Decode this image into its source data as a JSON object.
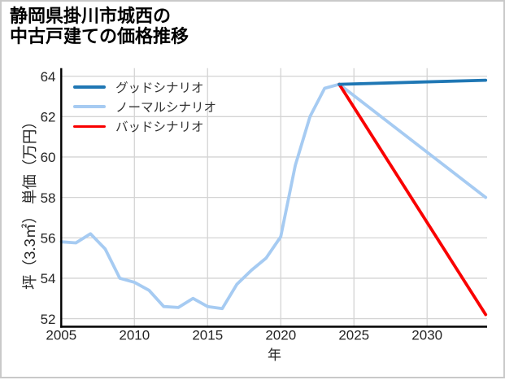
{
  "title": {
    "line1": "静岡県掛川市城西の",
    "line2": "中古戸建ての価格推移"
  },
  "chart_data": {
    "type": "line",
    "title": "静岡県掛川市城西の中古戸建ての価格推移",
    "xlabel": "年",
    "ylabel": "坪（3.3㎡） 単価（万円）",
    "xlim": [
      2005,
      2034.1
    ],
    "ylim": [
      51.6,
      64.4
    ],
    "xticks": [
      2005,
      2010,
      2015,
      2020,
      2025,
      2030
    ],
    "yticks": [
      52,
      54,
      56,
      58,
      60,
      62,
      64
    ],
    "grid": true,
    "grid_color": "#d4d4d4",
    "axis_color": "#000000",
    "tick_color": "#262626",
    "legend_position": "upper-left",
    "series": [
      {
        "label": null,
        "role": "historical",
        "color": "#a6cbf2",
        "x": [
          2005,
          2006,
          2007,
          2008,
          2009,
          2010,
          2011,
          2012,
          2013,
          2014,
          2015,
          2016,
          2017,
          2018,
          2019,
          2020,
          2021,
          2022,
          2023,
          2024
        ],
        "values": [
          55.8,
          55.75,
          56.2,
          55.45,
          54.0,
          53.8,
          53.4,
          52.6,
          52.55,
          53.0,
          52.6,
          52.5,
          53.7,
          54.4,
          55.0,
          56.05,
          59.6,
          62.0,
          63.4,
          63.6
        ]
      },
      {
        "label": "ノーマルシナリオ",
        "role": "normal-scenario",
        "color": "#a6cbf2",
        "x": [
          2024,
          2034
        ],
        "values": [
          63.6,
          58.0
        ]
      },
      {
        "label": "バッドシナリオ",
        "role": "bad-scenario",
        "color": "#f90000",
        "x": [
          2024,
          2034
        ],
        "values": [
          63.6,
          52.2
        ]
      },
      {
        "label": "グッドシナリオ",
        "role": "good-scenario",
        "color": "#1f77b4",
        "x": [
          2024,
          2034
        ],
        "values": [
          63.6,
          63.8
        ]
      }
    ],
    "legend": [
      {
        "label": "グッドシナリオ",
        "color": "#1f77b4"
      },
      {
        "label": "ノーマルシナリオ",
        "color": "#a6cbf2"
      },
      {
        "label": "バッドシナリオ",
        "color": "#f90000"
      }
    ]
  }
}
